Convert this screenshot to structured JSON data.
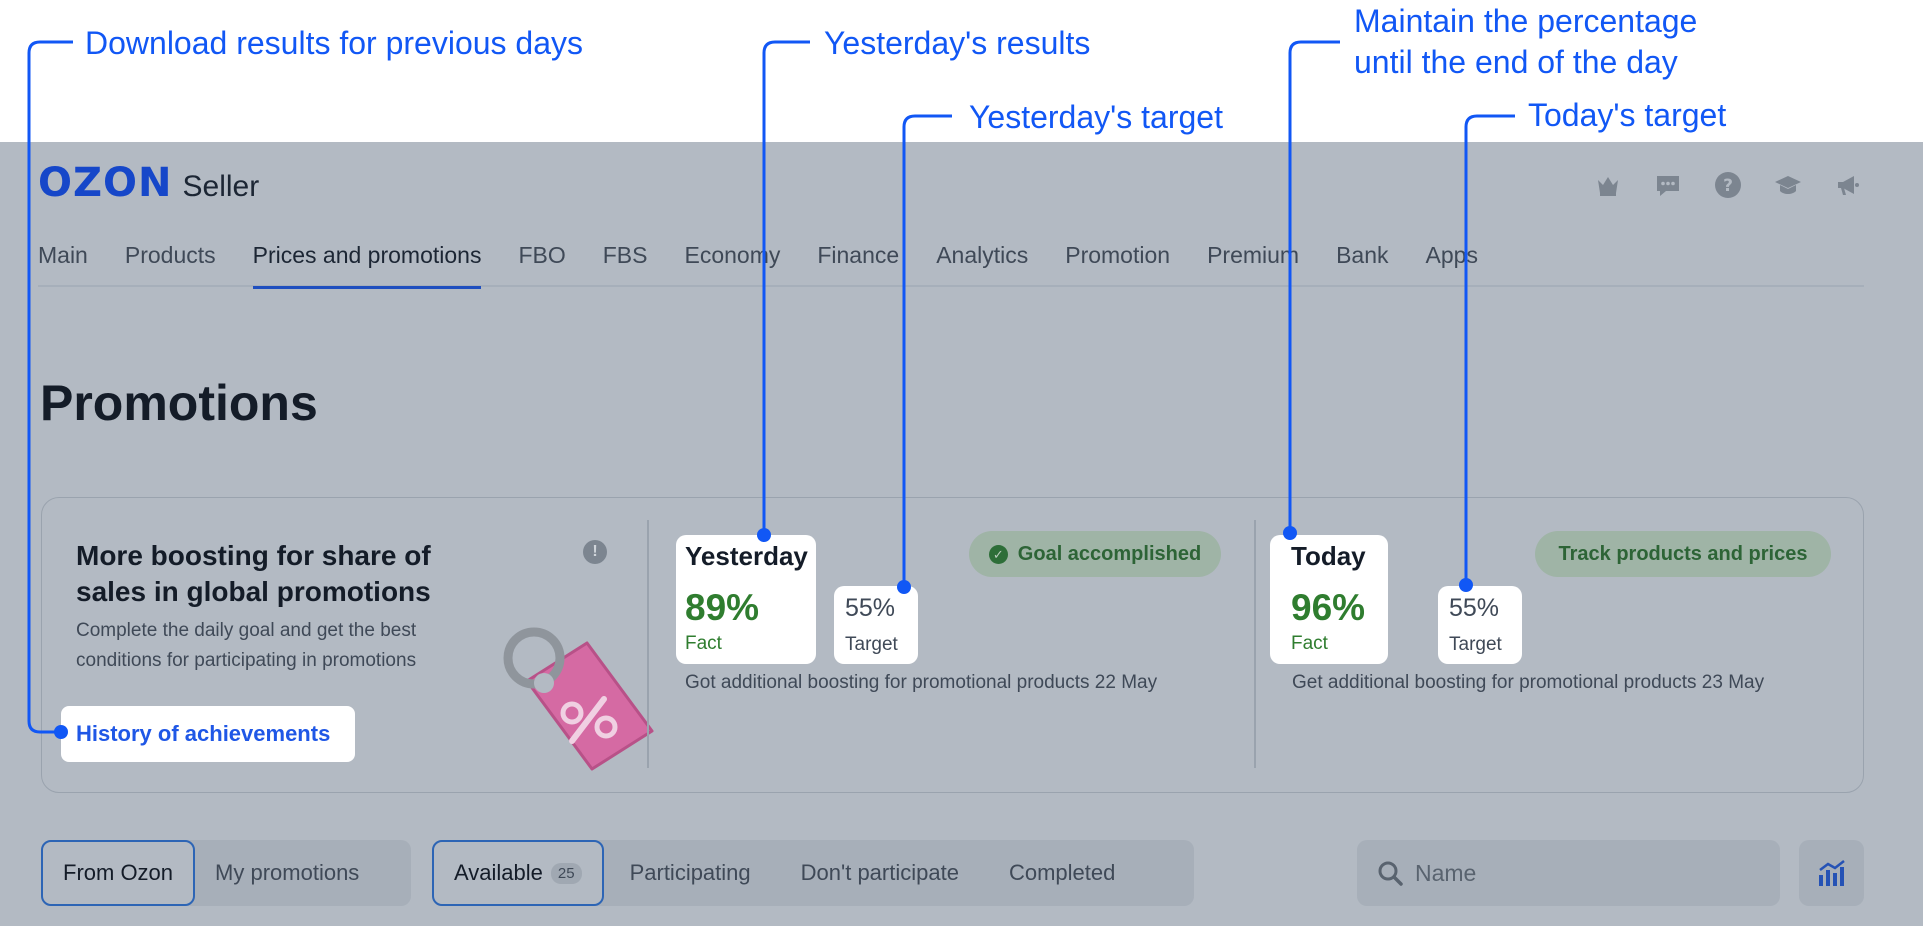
{
  "annotations": {
    "download": "Download results for previous days",
    "yesterday_results": "Yesterday's results",
    "yesterday_target": "Yesterday's target",
    "maintain_line1": "Maintain the percentage",
    "maintain_line2": "until the end of the day",
    "today_target": "Today's target"
  },
  "header": {
    "logo_brand": "OZON",
    "logo_product": "Seller",
    "icons": [
      "crown-icon",
      "chat-icon",
      "help-icon",
      "education-icon",
      "announcement-icon"
    ]
  },
  "nav": {
    "items": [
      "Main",
      "Products",
      "Prices and promotions",
      "FBO",
      "FBS",
      "Economy",
      "Finance",
      "Analytics",
      "Promotion",
      "Premium",
      "Bank",
      "Apps"
    ],
    "active": "Prices and promotions"
  },
  "page": {
    "title": "Promotions"
  },
  "boost_card": {
    "heading": "More boosting for share of sales in global promotions",
    "description": "Complete the daily goal and get the best conditions for participating in promotions",
    "history_link": "History of achievements",
    "yesterday": {
      "title": "Yesterday",
      "fact_value": "89%",
      "fact_label": "Fact",
      "target_value": "55%",
      "target_label": "Target",
      "status": "Goal accomplished",
      "note": "Got additional boosting for promotional products 22 May"
    },
    "today": {
      "title": "Today",
      "fact_value": "96%",
      "fact_label": "Fact",
      "target_value": "55%",
      "target_label": "Target",
      "action": "Track products and prices",
      "note": "Get additional boosting for promotional products 23 May"
    }
  },
  "filters": {
    "source_tabs": [
      "From Ozon",
      "My promotions"
    ],
    "status_tabs": [
      "Available",
      "Participating",
      "Don't participate",
      "Completed"
    ],
    "available_count": "25",
    "search_placeholder": "Name"
  },
  "colors": {
    "accent": "#1157f5",
    "brand": "#1647c9",
    "positive": "#2f7d2f",
    "overlay": "#b3bac3"
  }
}
